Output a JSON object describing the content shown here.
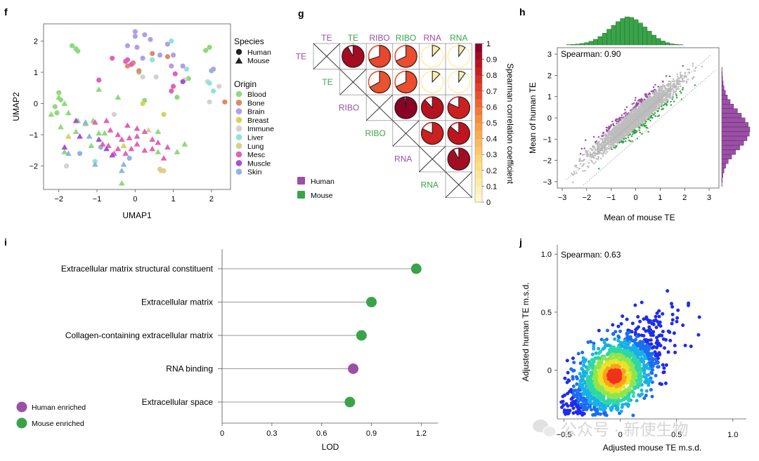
{
  "colors": {
    "human": "#9b4fa5",
    "mouse": "#3aa34a",
    "grey": "#bdbdbd",
    "blue": "#1f2ce8",
    "axis": "#444444"
  },
  "chart_data": [
    {
      "panel": "f",
      "type": "scatter",
      "xlabel": "UMAP1",
      "ylabel": "UMAP2",
      "xlim": [
        -2.4,
        2.5
      ],
      "ylim": [
        -2.75,
        2.55
      ],
      "xticks": [
        -2,
        -1,
        0,
        1,
        2
      ],
      "yticks": [
        -2,
        -1,
        0,
        1,
        2
      ],
      "legend_species_title": "Species",
      "species": [
        {
          "name": "Human",
          "shape": "circle"
        },
        {
          "name": "Mouse",
          "shape": "triangle"
        }
      ],
      "legend_origin_title": "Origin",
      "origins": [
        {
          "name": "Blood",
          "color": "#90d97c"
        },
        {
          "name": "Bone",
          "color": "#e0896a"
        },
        {
          "name": "Brain",
          "color": "#b39fe3"
        },
        {
          "name": "Breast",
          "color": "#d4d45c"
        },
        {
          "name": "Immune",
          "color": "#d2d2d2"
        },
        {
          "name": "Liver",
          "color": "#8fe3d8"
        },
        {
          "name": "Lung",
          "color": "#d9d08a"
        },
        {
          "name": "Mesc",
          "color": "#e063b6"
        },
        {
          "name": "Muscle",
          "color": "#a54fd8"
        },
        {
          "name": "Skin",
          "color": "#8fb5e0"
        }
      ],
      "points": [
        [
          -1.65,
          1.85,
          0,
          0
        ],
        [
          -1.55,
          1.75,
          0,
          0
        ],
        [
          -1.5,
          1.68,
          0,
          0
        ],
        [
          1.85,
          1.7,
          0,
          0
        ],
        [
          1.95,
          1.8,
          0,
          0
        ],
        [
          -2.0,
          0.35,
          0,
          0
        ],
        [
          -1.95,
          0.12,
          0,
          0
        ],
        [
          -2.1,
          -0.1,
          0,
          0
        ],
        [
          -2.05,
          -0.3,
          0,
          0
        ],
        [
          0.1,
          1.0,
          0,
          0
        ],
        [
          0.25,
          0.1,
          0,
          0
        ],
        [
          1.4,
          0.8,
          0,
          0
        ],
        [
          1.1,
          0.2,
          0,
          0
        ],
        [
          -0.2,
          1.2,
          0,
          1
        ],
        [
          -0.05,
          1.3,
          0,
          1
        ],
        [
          0.1,
          1.05,
          0,
          1
        ],
        [
          0.85,
          1.5,
          0,
          1
        ],
        [
          2.35,
          0.05,
          0,
          1
        ],
        [
          0.45,
          1.6,
          0,
          1
        ],
        [
          0.0,
          2.3,
          0,
          2
        ],
        [
          0.0,
          2.15,
          0,
          2
        ],
        [
          0.25,
          2.2,
          0,
          2
        ],
        [
          0.4,
          2.05,
          0,
          2
        ],
        [
          -0.2,
          1.85,
          0,
          2
        ],
        [
          0.05,
          1.8,
          0,
          2
        ],
        [
          0.65,
          1.55,
          0,
          2
        ],
        [
          0.85,
          1.9,
          0,
          2
        ],
        [
          1.0,
          1.55,
          0,
          2
        ],
        [
          1.25,
          1.2,
          0,
          2
        ],
        [
          2.05,
          1.1,
          0,
          2
        ],
        [
          0.95,
          1.2,
          0,
          2
        ],
        [
          0.2,
          1.45,
          0,
          2
        ],
        [
          0.2,
          0.0,
          0,
          3
        ],
        [
          0.75,
          -0.35,
          0,
          3
        ],
        [
          0.2,
          0.85,
          0,
          4
        ],
        [
          0.55,
          0.85,
          0,
          4
        ],
        [
          1.3,
          0.75,
          0,
          4
        ],
        [
          1.9,
          0.7,
          0,
          4
        ],
        [
          2.2,
          0.55,
          0,
          4
        ],
        [
          1.95,
          0.05,
          0,
          4
        ],
        [
          -1.8,
          -2.0,
          0,
          4
        ],
        [
          -0.55,
          -0.35,
          0,
          4
        ],
        [
          0.45,
          1.4,
          0,
          5
        ],
        [
          0.95,
          2.0,
          0,
          5
        ],
        [
          1.35,
          1.1,
          0,
          5
        ],
        [
          1.95,
          0.65,
          0,
          5
        ],
        [
          2.05,
          0.4,
          0,
          5
        ],
        [
          -1.05,
          -1.85,
          0,
          5
        ],
        [
          0.65,
          -2.1,
          0,
          6
        ],
        [
          0.75,
          -2.15,
          0,
          6
        ],
        [
          -0.95,
          0.75,
          0,
          7
        ],
        [
          -0.6,
          1.45,
          0,
          7
        ],
        [
          -0.2,
          1.4,
          0,
          7
        ],
        [
          -0.25,
          1.35,
          0,
          7
        ],
        [
          0.95,
          0.4,
          0,
          7
        ],
        [
          1.0,
          0.55,
          0,
          7
        ],
        [
          1.05,
          0.95,
          0,
          7
        ],
        [
          -0.1,
          1.25,
          0,
          7
        ],
        [
          1.25,
          0.7,
          0,
          8
        ],
        [
          -1.45,
          -1.6,
          0,
          9
        ],
        [
          -0.9,
          -1.4,
          0,
          9
        ],
        [
          -0.15,
          -1.75,
          0,
          9
        ],
        [
          2.0,
          1.05,
          0,
          9
        ],
        [
          -2.0,
          0.2,
          1,
          0
        ],
        [
          -1.85,
          0.0,
          1,
          0
        ],
        [
          -1.75,
          -0.3,
          1,
          0
        ],
        [
          -2.2,
          -0.35,
          1,
          0
        ],
        [
          -1.95,
          -0.75,
          1,
          0
        ],
        [
          -1.5,
          -0.55,
          1,
          0
        ],
        [
          -1.55,
          -0.9,
          1,
          0
        ],
        [
          -1.3,
          -0.65,
          1,
          0
        ],
        [
          -1.1,
          -0.55,
          1,
          0
        ],
        [
          -0.95,
          -0.95,
          1,
          0
        ],
        [
          -0.8,
          -0.95,
          1,
          0
        ],
        [
          -0.95,
          0.45,
          1,
          0
        ],
        [
          -1.15,
          -1.35,
          1,
          0
        ],
        [
          -0.45,
          0.2,
          1,
          0
        ],
        [
          -0.35,
          -2.55,
          1,
          0
        ],
        [
          0.6,
          -0.9,
          1,
          0
        ],
        [
          1.1,
          -1.55,
          1,
          0
        ],
        [
          1.3,
          -1.3,
          1,
          0
        ],
        [
          0.6,
          -1.55,
          1,
          0
        ],
        [
          -1.85,
          -1.55,
          1,
          0
        ],
        [
          -1.75,
          -1.05,
          1,
          3
        ],
        [
          -0.3,
          -1.35,
          1,
          3
        ],
        [
          0.35,
          -0.85,
          1,
          6
        ],
        [
          0.7,
          -2.15,
          1,
          6
        ],
        [
          -0.65,
          -0.85,
          1,
          7
        ],
        [
          -0.45,
          -1.0,
          1,
          7
        ],
        [
          -0.2,
          -0.7,
          1,
          7
        ],
        [
          0.05,
          -0.8,
          1,
          7
        ],
        [
          0.05,
          -1.05,
          1,
          7
        ],
        [
          0.25,
          -0.9,
          1,
          7
        ],
        [
          0.45,
          -1.15,
          1,
          7
        ],
        [
          0.6,
          -1.25,
          1,
          7
        ],
        [
          0.05,
          -1.3,
          1,
          7
        ],
        [
          -0.1,
          -1.45,
          1,
          7
        ],
        [
          0.25,
          -1.5,
          1,
          7
        ],
        [
          -0.35,
          -1.15,
          1,
          7
        ],
        [
          -0.45,
          -1.45,
          1,
          7
        ],
        [
          -0.7,
          -1.35,
          1,
          7
        ],
        [
          -0.55,
          -1.6,
          1,
          7
        ],
        [
          -0.25,
          -1.6,
          1,
          7
        ],
        [
          -0.15,
          -1.1,
          1,
          7
        ],
        [
          0.45,
          -1.45,
          1,
          7
        ],
        [
          0.85,
          -1.4,
          1,
          7
        ],
        [
          -1.05,
          -0.6,
          1,
          7
        ],
        [
          -0.85,
          -1.3,
          1,
          7
        ],
        [
          0.75,
          -1.75,
          1,
          7
        ],
        [
          -0.75,
          -0.55,
          1,
          7
        ],
        [
          -1.55,
          -0.55,
          1,
          8
        ],
        [
          -1.45,
          -1.05,
          1,
          8
        ],
        [
          -1.85,
          -1.4,
          1,
          8
        ],
        [
          -0.95,
          -1.15,
          1,
          8
        ],
        [
          -0.75,
          -1.45,
          1,
          8
        ],
        [
          -0.6,
          -1.65,
          1,
          8
        ],
        [
          -1.3,
          -0.6,
          1,
          9
        ],
        [
          -1.2,
          -1.05,
          1,
          9
        ],
        [
          -1.05,
          -1.95,
          1,
          9
        ],
        [
          -0.35,
          -2.15,
          1,
          9
        ],
        [
          -0.3,
          -1.95,
          1,
          9
        ],
        [
          -1.75,
          -1.6,
          1,
          9
        ]
      ]
    },
    {
      "panel": "g",
      "type": "heatmap",
      "labels": [
        "TE",
        "TE",
        "RIBO",
        "RIBO",
        "RNA",
        "RNA"
      ],
      "label_species": [
        0,
        1,
        0,
        1,
        0,
        1
      ],
      "values": [
        [
          1,
          0.92,
          0.7,
          0.68,
          0.12,
          0.1
        ],
        [
          0.92,
          1,
          0.67,
          0.68,
          0.12,
          0.1
        ],
        [
          0.7,
          0.67,
          1,
          0.98,
          0.88,
          0.82
        ],
        [
          0.68,
          0.68,
          0.98,
          1,
          0.82,
          0.86
        ],
        [
          0.12,
          0.12,
          0.88,
          0.82,
          1,
          0.92
        ],
        [
          0.1,
          0.1,
          0.82,
          0.86,
          0.92,
          1
        ]
      ],
      "legend": [
        "Human",
        "Mouse"
      ],
      "colorbar_title": "Spearman correlation coefficient",
      "colorbar_range": [
        0,
        1
      ],
      "colorbar_ticks": [
        "0",
        "0.1",
        "0.2",
        "0.3",
        "0.4",
        "0.5",
        "0.6",
        "0.7",
        "0.8",
        "0.9",
        "1"
      ]
    },
    {
      "panel": "h",
      "type": "scatter",
      "xlabel": "Mean of mouse TE",
      "ylabel": "Mean of human TE",
      "xlim": [
        -3.2,
        3.4
      ],
      "ylim": [
        -3.3,
        3.3
      ],
      "xticks": [
        -3,
        -2,
        -1,
        0,
        1,
        2,
        3
      ],
      "yticks": [
        -3,
        -2,
        -1,
        0,
        1,
        2,
        3
      ],
      "annotation": "Spearman: 0.90",
      "correlation": 0.9,
      "top_histogram": [
        1,
        2,
        3,
        5,
        8,
        13,
        20,
        30,
        42,
        56,
        70,
        83,
        94,
        100,
        98,
        90,
        78,
        64,
        49,
        35,
        23,
        14,
        8,
        4,
        2,
        1
      ],
      "right_histogram": [
        1,
        2,
        3,
        5,
        8,
        13,
        20,
        30,
        42,
        56,
        70,
        83,
        94,
        100,
        98,
        90,
        78,
        64,
        49,
        35,
        23,
        14,
        8,
        4,
        2,
        1
      ]
    },
    {
      "panel": "i",
      "type": "lollipop",
      "xlabel": "LOD",
      "xlim": [
        0,
        1.3
      ],
      "xticks": [
        "0",
        "0.3",
        "0.6",
        "0.9",
        "1.2"
      ],
      "categories": [
        "Extracellular matrix structural constituent",
        "Extracellular matrix",
        "Collagen-containing extracellular matrix",
        "RNA binding",
        "Extracellular space"
      ],
      "values": [
        1.17,
        0.9,
        0.84,
        0.79,
        0.77
      ],
      "groups": [
        1,
        1,
        1,
        0,
        1
      ],
      "legend": [
        "Human enriched",
        "Mouse enriched"
      ]
    },
    {
      "panel": "j",
      "type": "scatter",
      "xlabel": "Adjusted mouse TE m.s.d.",
      "ylabel": "Adjusted human TE m.s.d.",
      "xlim": [
        -0.56,
        1.12
      ],
      "ylim": [
        -0.42,
        1.08
      ],
      "xticks": [
        "-0.5",
        "0",
        "0.5",
        "1.0"
      ],
      "yticks": [
        "0",
        "0.5",
        "1.0"
      ],
      "annotation": "Spearman: 0.63",
      "correlation": 0.63
    }
  ],
  "panel_letters": {
    "f": "f",
    "g": "g",
    "h": "h",
    "i": "i",
    "j": "j"
  },
  "watermark": "公众号 · 新使生物"
}
